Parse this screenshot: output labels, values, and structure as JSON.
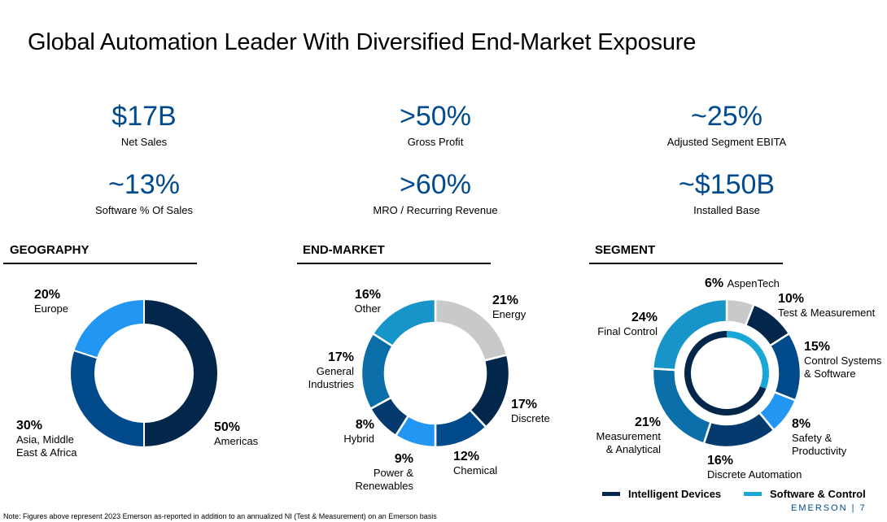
{
  "title": "Global Automation Leader With Diversified End-Market Exposure",
  "kpis": [
    {
      "value": "$17B",
      "label": "Net Sales"
    },
    {
      "value": ">50%",
      "label": "Gross Profit"
    },
    {
      "value": "~25%",
      "label": "Adjusted Segment EBITA"
    },
    {
      "value": "~13%",
      "label": "Software % Of Sales"
    },
    {
      "value": ">60%",
      "label": "MRO / Recurring Revenue"
    },
    {
      "value": "~$150B",
      "label": "Installed Base"
    }
  ],
  "colors": {
    "kpi_blue": "#004b8d",
    "navy": "#03274a",
    "dark_blue": "#004a8c",
    "mid_blue": "#0a6fa8",
    "light_blue": "#2196f3",
    "teal_blue": "#1895c8",
    "grey": "#c8c9cb",
    "navy_2": "#053a6e",
    "sw_control": "#1aa7d8"
  },
  "chart_data": [
    {
      "type": "pie",
      "title": "GEOGRAPHY",
      "slices": [
        {
          "pct_label": "50%",
          "name": "Americas",
          "value": 50,
          "color": "#03274a"
        },
        {
          "pct_label": "30%",
          "name": "Asia, Middle East & Africa",
          "lines": [
            "Asia, Middle",
            "East & Africa"
          ],
          "value": 30,
          "color": "#004a8c"
        },
        {
          "pct_label": "20%",
          "name": "Europe",
          "value": 20,
          "color": "#2196f3"
        }
      ]
    },
    {
      "type": "pie",
      "title": "END-MARKET",
      "slices": [
        {
          "pct_label": "21%",
          "name": "Energy",
          "value": 21,
          "color": "#c8c9cb"
        },
        {
          "pct_label": "17%",
          "name": "Discrete",
          "value": 17,
          "color": "#03274a"
        },
        {
          "pct_label": "12%",
          "name": "Chemical",
          "value": 12,
          "color": "#004a8c"
        },
        {
          "pct_label": "9%",
          "name": "Power & Renewables",
          "lines": [
            "Power &",
            "Renewables"
          ],
          "value": 9,
          "color": "#2196f3"
        },
        {
          "pct_label": "8%",
          "name": "Hybrid",
          "value": 8,
          "color": "#053a6e"
        },
        {
          "pct_label": "17%",
          "name": "General Industries",
          "lines": [
            "General",
            "Industries"
          ],
          "value": 17,
          "color": "#0a6fa8"
        },
        {
          "pct_label": "16%",
          "name": "Other",
          "value": 16,
          "color": "#1895c8"
        }
      ]
    },
    {
      "type": "pie",
      "title": "SEGMENT",
      "slices": [
        {
          "pct_label": "6%",
          "name": "AspenTech",
          "value": 6,
          "color": "#c8c9cb"
        },
        {
          "pct_label": "10%",
          "name": "Test & Measurement",
          "value": 10,
          "color": "#03274a"
        },
        {
          "pct_label": "15%",
          "name": "Control Systems & Software",
          "lines": [
            "Control Systems",
            "& Software"
          ],
          "value": 15,
          "color": "#004a8c"
        },
        {
          "pct_label": "8%",
          "name": "Safety & Productivity",
          "lines": [
            "Safety &",
            "Productivity"
          ],
          "value": 8,
          "color": "#2196f3"
        },
        {
          "pct_label": "16%",
          "name": "Discrete Automation",
          "value": 16,
          "color": "#053a6e"
        },
        {
          "pct_label": "21%",
          "name": "Measurement & Analytical",
          "lines": [
            "Measurement",
            "& Analytical"
          ],
          "value": 21,
          "color": "#0a6fa8"
        },
        {
          "pct_label": "24%",
          "name": "Final Control",
          "value": 24,
          "color": "#1895c8"
        }
      ],
      "inner_ring": [
        {
          "name": "Software & Control",
          "value": 31,
          "color": "#1aa7d8"
        },
        {
          "name": "Intelligent Devices",
          "value": 69,
          "color": "#03274a"
        }
      ],
      "legend": [
        {
          "name": "Intelligent Devices",
          "color": "#03274a"
        },
        {
          "name": "Software & Control",
          "color": "#1aa7d8"
        }
      ]
    }
  ],
  "footer": {
    "brand": "EMERSON | 7",
    "note": "Note: Figures above represent 2023 Emerson as-reported in addition to an annualized NI (Test & Measurement) on an Emerson basis"
  }
}
